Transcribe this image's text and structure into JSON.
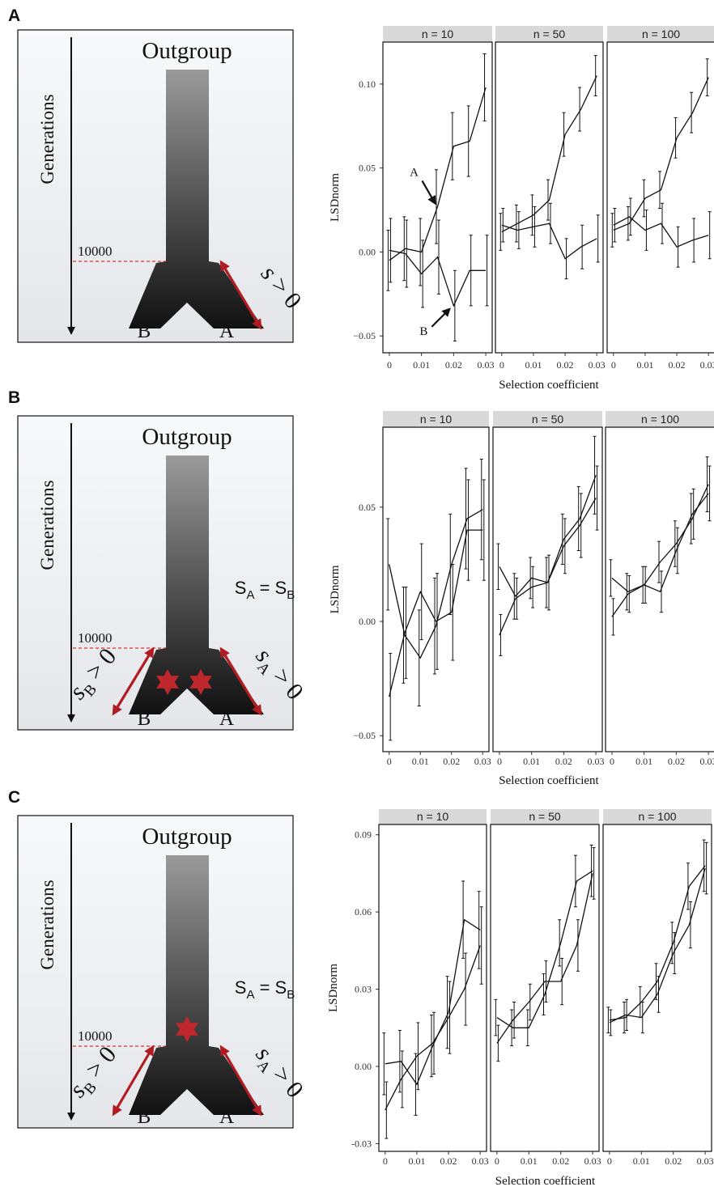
{
  "panels": [
    {
      "letter": "A",
      "diagram": {
        "outgroup": "Outgroup",
        "generations": "Generations",
        "split_generation": "10000",
        "branch_left": "B",
        "branch_right": "A",
        "selection_right": "s > 0",
        "selection_left": "",
        "equality": "",
        "stars": "none"
      }
    },
    {
      "letter": "B",
      "diagram": {
        "outgroup": "Outgroup",
        "generations": "Generations",
        "split_generation": "10000",
        "branch_left": "B",
        "branch_right": "A",
        "selection_right": "sA > 0",
        "selection_left": "sB > 0",
        "equality": "SA = SB",
        "stars": "both-branches"
      }
    },
    {
      "letter": "C",
      "diagram": {
        "outgroup": "Outgroup",
        "generations": "Generations",
        "split_generation": "10000",
        "branch_left": "B",
        "branch_right": "A",
        "selection_right": "sA > 0",
        "selection_left": "sB > 0",
        "equality": "SA = SB",
        "stars": "ancestral"
      }
    }
  ],
  "chart_data": [
    {
      "panel": "A",
      "type": "line",
      "xlabel": "Selection coefficient",
      "ylabel": "LSDnorm",
      "xlim": [
        -0.002,
        0.032
      ],
      "ylim": [
        -0.06,
        0.125
      ],
      "yticks": [
        -0.05,
        0.0,
        0.05,
        0.1
      ],
      "ytick_labels": [
        "−0.05",
        "0.00",
        "0.05",
        "0.10"
      ],
      "xticks": [
        0,
        0.01,
        0.02,
        0.03
      ],
      "xtick_labels": [
        "0",
        "0.01",
        "0.02",
        "0.03"
      ],
      "grid": false,
      "annotations": [
        {
          "facet": 0,
          "text": "A",
          "series": 0,
          "x_index": 3
        },
        {
          "facet": 0,
          "text": "B",
          "series": 1,
          "x_index": 4
        }
      ],
      "facets": [
        {
          "label": "n = 10",
          "x": [
            0,
            0.005,
            0.01,
            0.015,
            0.02,
            0.025,
            0.03
          ],
          "series": [
            {
              "values": [
                -0.005,
                0.002,
                0.0,
                0.027,
                0.063,
                0.066,
                0.098
              ],
              "err": [
                0.018,
                0.019,
                0.02,
                0.022,
                0.02,
                0.021,
                0.02
              ]
            },
            {
              "values": [
                0.001,
                -0.001,
                -0.013,
                -0.003,
                -0.032,
                -0.011,
                -0.011
              ],
              "err": [
                0.019,
                0.02,
                0.02,
                0.022,
                0.021,
                0.021,
                0.021
              ]
            }
          ]
        },
        {
          "label": "n = 50",
          "x": [
            0,
            0.005,
            0.01,
            0.015,
            0.02,
            0.025,
            0.03
          ],
          "series": [
            {
              "values": [
                0.012,
                0.017,
                0.022,
                0.031,
                0.07,
                0.085,
                0.105
              ],
              "err": [
                0.011,
                0.011,
                0.012,
                0.012,
                0.013,
                0.013,
                0.012
              ]
            },
            {
              "values": [
                0.016,
                0.013,
                0.015,
                0.017,
                -0.004,
                0.003,
                0.008
              ],
              "err": [
                0.01,
                0.011,
                0.012,
                0.012,
                0.012,
                0.013,
                0.014
              ]
            }
          ]
        },
        {
          "label": "n = 100",
          "x": [
            0,
            0.005,
            0.01,
            0.015,
            0.02,
            0.025,
            0.03
          ],
          "series": [
            {
              "values": [
                0.013,
                0.017,
                0.032,
                0.037,
                0.068,
                0.083,
                0.104
              ],
              "err": [
                0.01,
                0.01,
                0.011,
                0.011,
                0.012,
                0.012,
                0.011
              ]
            },
            {
              "values": [
                0.016,
                0.021,
                0.013,
                0.017,
                0.003,
                0.007,
                0.01
              ],
              "err": [
                0.01,
                0.011,
                0.012,
                0.012,
                0.012,
                0.013,
                0.014
              ]
            }
          ]
        }
      ]
    },
    {
      "panel": "B",
      "type": "line",
      "xlabel": "Selection coefficient",
      "ylabel": "LSDnorm",
      "xlim": [
        -0.002,
        0.032
      ],
      "ylim": [
        -0.057,
        0.085
      ],
      "yticks": [
        -0.05,
        0.0,
        0.05
      ],
      "ytick_labels": [
        "−0.05",
        "0.00",
        "0.05"
      ],
      "xticks": [
        0,
        0.01,
        0.02,
        0.03
      ],
      "xtick_labels": [
        "0",
        "0.01",
        "0.02",
        "0.03"
      ],
      "grid": false,
      "facets": [
        {
          "label": "n = 10",
          "x": [
            0,
            0.005,
            0.01,
            0.015,
            0.02,
            0.025,
            0.03
          ],
          "series": [
            {
              "values": [
                0.025,
                -0.006,
                -0.016,
                -0.002,
                0.025,
                0.045,
                0.049
              ],
              "err": [
                0.02,
                0.021,
                0.021,
                0.021,
                0.022,
                0.022,
                0.022
              ]
            },
            {
              "values": [
                -0.033,
                -0.005,
                0.013,
                0.0,
                0.004,
                0.04,
                0.04
              ],
              "err": [
                0.019,
                0.02,
                0.021,
                0.021,
                0.021,
                0.022,
                0.022
              ]
            }
          ]
        },
        {
          "label": "n = 50",
          "x": [
            0,
            0.005,
            0.01,
            0.015,
            0.02,
            0.025,
            0.03
          ],
          "series": [
            {
              "values": [
                0.024,
                0.011,
                0.019,
                0.017,
                0.036,
                0.045,
                0.064
              ],
              "err": [
                0.01,
                0.01,
                0.009,
                0.011,
                0.011,
                0.014,
                0.017
              ]
            },
            {
              "values": [
                -0.006,
                0.01,
                0.015,
                0.017,
                0.033,
                0.042,
                0.054
              ],
              "err": [
                0.009,
                0.009,
                0.009,
                0.012,
                0.012,
                0.014,
                0.014
              ]
            }
          ]
        },
        {
          "label": "n = 100",
          "x": [
            0,
            0.005,
            0.01,
            0.015,
            0.02,
            0.025,
            0.03
          ],
          "series": [
            {
              "values": [
                0.019,
                0.013,
                0.016,
                0.026,
                0.034,
                0.045,
                0.06
              ],
              "err": [
                0.008,
                0.008,
                0.008,
                0.009,
                0.01,
                0.011,
                0.012
              ]
            },
            {
              "values": [
                0.002,
                0.012,
                0.016,
                0.013,
                0.031,
                0.047,
                0.056
              ],
              "err": [
                0.008,
                0.008,
                0.008,
                0.009,
                0.01,
                0.011,
                0.012
              ]
            }
          ]
        }
      ]
    },
    {
      "panel": "C",
      "type": "line",
      "xlabel": "Selection coefficient",
      "ylabel": "LSDnorm",
      "xlim": [
        -0.002,
        0.032
      ],
      "ylim": [
        -0.033,
        0.094
      ],
      "yticks": [
        -0.03,
        0.0,
        0.03,
        0.06,
        0.09
      ],
      "ytick_labels": [
        "-0.03",
        "0.00",
        "0.03",
        "0.06",
        "0.09"
      ],
      "xticks": [
        0,
        0.01,
        0.02,
        0.03
      ],
      "xtick_labels": [
        "0",
        "0.01",
        "0.02",
        "0.03"
      ],
      "grid": false,
      "facets": [
        {
          "label": "n = 10",
          "x": [
            0,
            0.005,
            0.01,
            0.015,
            0.02,
            0.025,
            0.03
          ],
          "series": [
            {
              "values": [
                0.001,
                0.002,
                -0.007,
                0.008,
                0.021,
                0.057,
                0.053
              ],
              "err": [
                0.012,
                0.012,
                0.012,
                0.012,
                0.014,
                0.015,
                0.015
              ]
            },
            {
              "values": [
                -0.017,
                -0.005,
                0.004,
                0.009,
                0.019,
                0.03,
                0.047
              ],
              "err": [
                0.011,
                0.011,
                0.013,
                0.012,
                0.014,
                0.014,
                0.015
              ]
            }
          ]
        },
        {
          "label": "n = 50",
          "x": [
            0,
            0.005,
            0.01,
            0.015,
            0.02,
            0.025,
            0.03
          ],
          "series": [
            {
              "values": [
                0.019,
                0.015,
                0.015,
                0.028,
                0.048,
                0.072,
                0.076
              ],
              "err": [
                0.007,
                0.007,
                0.007,
                0.008,
                0.009,
                0.01,
                0.01
              ]
            },
            {
              "values": [
                0.009,
                0.018,
                0.025,
                0.033,
                0.033,
                0.047,
                0.075
              ],
              "err": [
                0.007,
                0.007,
                0.007,
                0.008,
                0.009,
                0.01,
                0.01
              ]
            }
          ]
        },
        {
          "label": "n = 100",
          "x": [
            0,
            0.005,
            0.01,
            0.015,
            0.02,
            0.025,
            0.03
          ],
          "series": [
            {
              "values": [
                0.018,
                0.019,
                0.025,
                0.033,
                0.048,
                0.07,
                0.078
              ],
              "err": [
                0.005,
                0.006,
                0.006,
                0.007,
                0.008,
                0.009,
                0.01
              ]
            },
            {
              "values": [
                0.017,
                0.02,
                0.019,
                0.028,
                0.044,
                0.055,
                0.077
              ],
              "err": [
                0.005,
                0.006,
                0.006,
                0.007,
                0.008,
                0.009,
                0.01
              ]
            }
          ]
        }
      ]
    }
  ],
  "colors": {
    "arrow_red": "#b01c22",
    "star_red": "#c0272d",
    "dashed_red": "#d9342b",
    "strip_gray": "#d9d9d9",
    "diagram_bg": "#eceef1"
  }
}
